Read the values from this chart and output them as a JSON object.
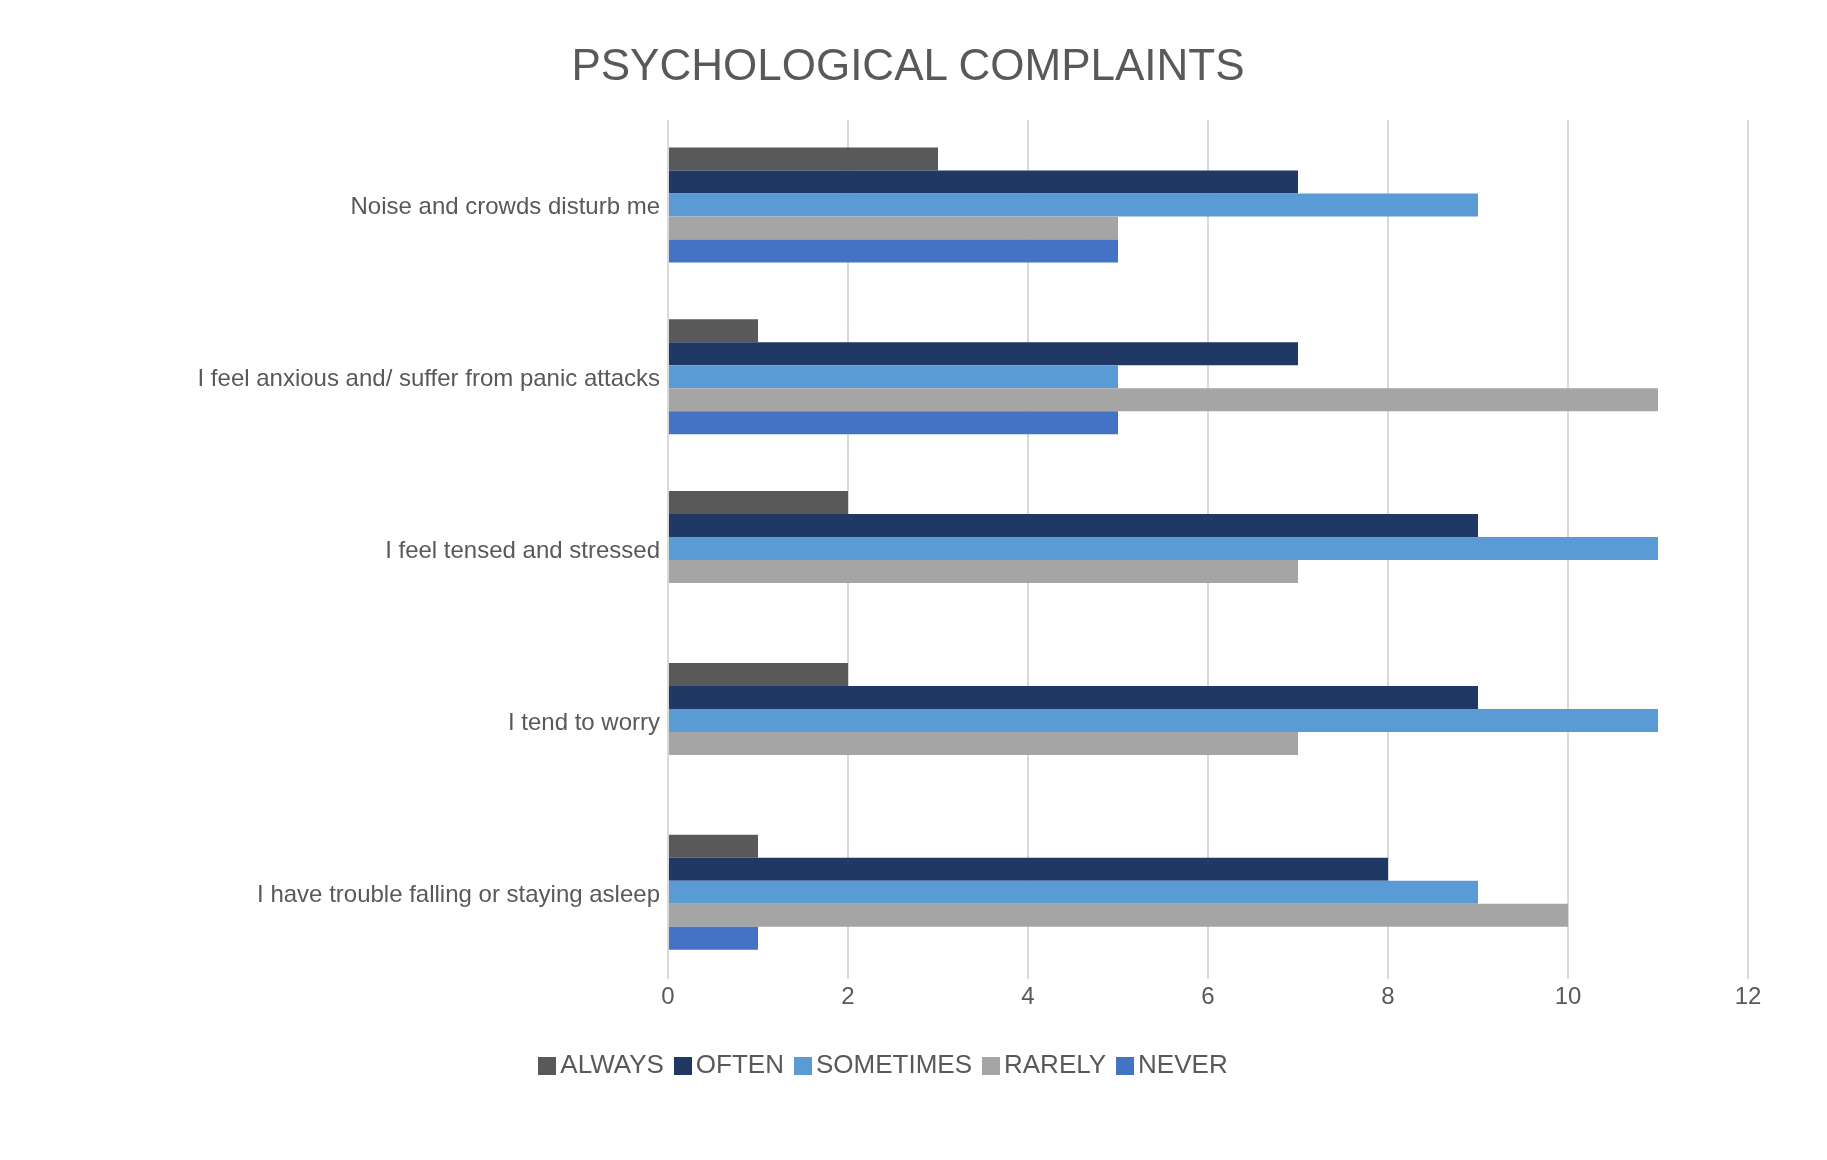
{
  "chart_data": {
    "type": "bar",
    "orientation": "horizontal",
    "title": "PSYCHOLOGICAL COMPLAINTS",
    "categories": [
      "Noise and crowds disturb me",
      "I feel anxious and/ suffer from panic attacks",
      "I feel tensed and stressed",
      "I tend to worry",
      "I have trouble falling or staying asleep"
    ],
    "series": [
      {
        "name": "ALWAYS",
        "color": "#595959",
        "values": [
          3,
          1,
          2,
          2,
          1
        ]
      },
      {
        "name": "OFTEN",
        "color": "#203864",
        "values": [
          7,
          7,
          9,
          9,
          8
        ]
      },
      {
        "name": "SOMETIMES",
        "color": "#5b9bd5",
        "values": [
          9,
          5,
          11,
          11,
          9
        ]
      },
      {
        "name": "RARELY",
        "color": "#a5a5a5",
        "values": [
          5,
          11,
          7,
          7,
          10
        ]
      },
      {
        "name": "NEVER",
        "color": "#4472c4",
        "values": [
          5,
          5,
          0,
          0,
          1
        ]
      }
    ],
    "xlim": [
      0,
      12
    ],
    "xticks": [
      0,
      2,
      4,
      6,
      8,
      10,
      12
    ],
    "grid": "x",
    "legend": "bottom"
  }
}
